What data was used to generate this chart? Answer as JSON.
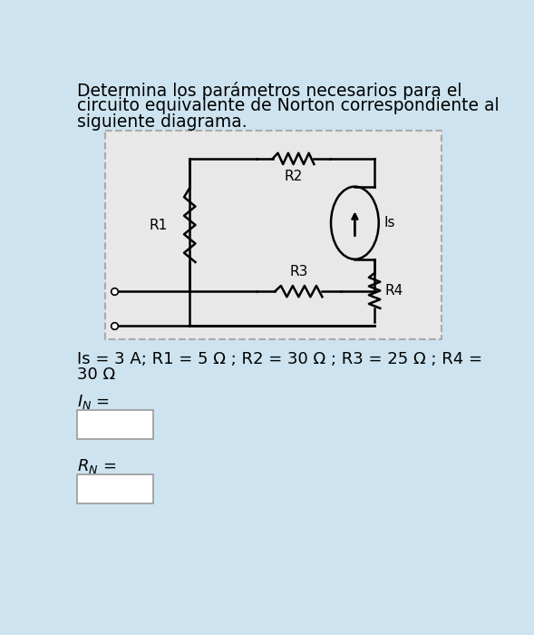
{
  "bg_color": "#cde4f0",
  "circuit_bg": "#e6e6e6",
  "circuit_border": "#aaaaaa",
  "text_color": "#000000",
  "title_line1": "Determina los parámetros necesarios para el",
  "title_line2": "circuito equivalente de Norton correspondiente al",
  "title_line3": "siguiente diagrama.",
  "param_line1": "Is = 3 A; R1 = 5 Ω ; R2 = 30 Ω ; R3 = 25 Ω ; R4 =",
  "param_line2": "30 Ω",
  "font_size_title": 13.5,
  "font_size_params": 13,
  "font_size_labels": 13,
  "font_size_R": 11,
  "wire_color": "#000000",
  "lw_wire": 1.8
}
